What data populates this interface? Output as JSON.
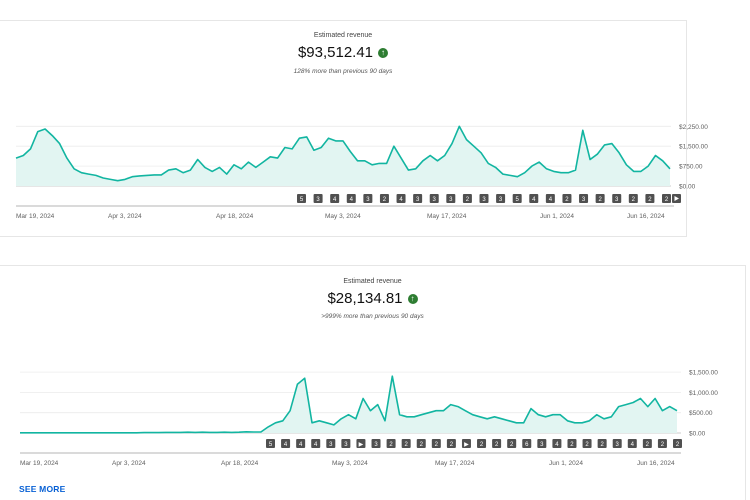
{
  "charts": [
    {
      "title": "Estimated revenue",
      "value": "$93,512.41",
      "comparison": "128% more than previous 90 days",
      "trend_icon": "arrow-up-icon",
      "accent": "#12b5a1",
      "chart_data": {
        "type": "area",
        "title": "Estimated revenue",
        "x_ticks": [
          "Mar 19, 2024",
          "Apr 3, 2024",
          "Apr 18, 2024",
          "May 3, 2024",
          "May 17, 2024",
          "Jun 1, 2024",
          "Jun 16, 2024"
        ],
        "y_ticks": [
          "$0.00",
          "$750.00",
          "$1,500.00",
          "$2,250.00"
        ],
        "ylim": [
          0,
          2450
        ],
        "grid": true,
        "values": [
          1050,
          1150,
          1400,
          2050,
          2150,
          1900,
          1600,
          1050,
          650,
          500,
          450,
          400,
          300,
          250,
          200,
          250,
          350,
          380,
          400,
          420,
          420,
          600,
          650,
          500,
          600,
          1000,
          700,
          550,
          700,
          450,
          800,
          650,
          900,
          700,
          900,
          1100,
          1050,
          1450,
          1400,
          1800,
          1850,
          1350,
          1450,
          1800,
          1700,
          1700,
          1300,
          950,
          950,
          800,
          850,
          850,
          1500,
          1050,
          600,
          650,
          950,
          1150,
          950,
          1150,
          1600,
          2250,
          1750,
          1500,
          1250,
          850,
          700,
          450,
          400,
          350,
          500,
          750,
          900,
          650,
          550,
          500,
          500,
          600,
          2100,
          1000,
          1200,
          1550,
          1600,
          1250,
          800,
          550,
          550,
          750,
          1150,
          950,
          650
        ]
      },
      "badges": [
        "5",
        "3",
        "4",
        "4",
        "3",
        "2",
        "4",
        "3",
        "3",
        "3",
        "2",
        "3",
        "3",
        "5",
        "4",
        "4",
        "2",
        "3",
        "2",
        "3",
        "2",
        "2",
        "2"
      ]
    },
    {
      "title": "Estimated revenue",
      "value": "$28,134.81",
      "comparison": ">999% more than previous 90 days",
      "trend_icon": "arrow-up-icon",
      "accent": "#12b5a1",
      "chart_data": {
        "type": "area",
        "title": "Estimated revenue",
        "x_ticks": [
          "Mar 19, 2024",
          "Apr 3, 2024",
          "Apr 18, 2024",
          "May 3, 2024",
          "May 17, 2024",
          "Jun 1, 2024",
          "Jun 16, 2024"
        ],
        "y_ticks": [
          "$0.00",
          "$500.00",
          "$1,000.00",
          "$1,500.00"
        ],
        "ylim": [
          0,
          1650
        ],
        "grid": true,
        "values": [
          5,
          5,
          5,
          5,
          5,
          5,
          5,
          5,
          5,
          5,
          5,
          5,
          5,
          5,
          5,
          5,
          5,
          10,
          10,
          10,
          15,
          15,
          15,
          20,
          15,
          20,
          15,
          15,
          20,
          15,
          20,
          30,
          25,
          25,
          150,
          250,
          300,
          550,
          1200,
          1350,
          250,
          300,
          250,
          200,
          350,
          450,
          350,
          850,
          550,
          700,
          300,
          1400,
          450,
          400,
          400,
          450,
          500,
          550,
          550,
          700,
          650,
          550,
          450,
          400,
          350,
          400,
          350,
          300,
          250,
          250,
          600,
          450,
          400,
          450,
          450,
          300,
          250,
          250,
          300,
          450,
          350,
          400,
          650,
          700,
          750,
          850,
          650,
          850,
          550,
          650,
          550
        ]
      },
      "badges": [
        "5",
        "4",
        "4",
        "4",
        "3",
        "3",
        "▶",
        "3",
        "2",
        "2",
        "2",
        "2",
        "2",
        "▶",
        "2",
        "2",
        "2",
        "6",
        "3",
        "4",
        "2",
        "2",
        "2",
        "3",
        "4",
        "2",
        "2",
        "2"
      ]
    }
  ],
  "see_more": "SEE MORE"
}
